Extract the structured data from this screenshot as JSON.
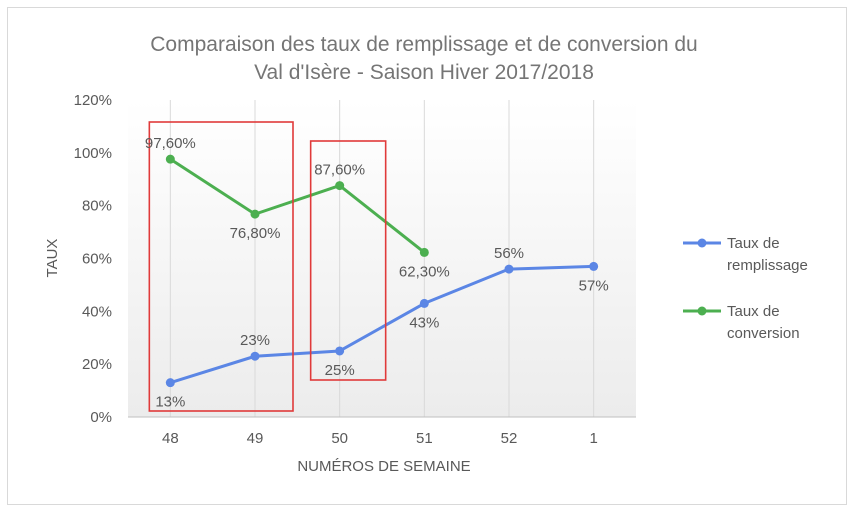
{
  "chart_data": {
    "type": "line",
    "title_lines": [
      "Comparaison des taux de remplissage et de conversion du",
      "Val d'Isère - Saison Hiver 2017/2018"
    ],
    "xlabel": "NUMÉROS DE SEMAINE",
    "ylabel": "TAUX",
    "categories": [
      "48",
      "49",
      "50",
      "51",
      "52",
      "1"
    ],
    "y_ticks": [
      "0%",
      "20%",
      "40%",
      "60%",
      "80%",
      "100%",
      "120%"
    ],
    "ylim": [
      0,
      120
    ],
    "grid": "vertical",
    "legend_position": "right",
    "series": [
      {
        "name": "Taux de remplissage",
        "legend_lines": [
          "Taux de",
          "remplissage"
        ],
        "color": "#5b86e5",
        "values": [
          13,
          23,
          25,
          43,
          56,
          57
        ],
        "labels": [
          "13%",
          "23%",
          "25%",
          "43%",
          "56%",
          "57%"
        ],
        "label_positions": [
          "below",
          "above",
          "below",
          "below",
          "above",
          "below"
        ]
      },
      {
        "name": "Taux de conversion",
        "legend_lines": [
          "Taux de",
          "conversion"
        ],
        "color": "#4caf50",
        "values": [
          97.6,
          76.8,
          87.6,
          62.3,
          null,
          null
        ],
        "labels": [
          "97,60%",
          "76,80%",
          "87,60%",
          "62,30%",
          "",
          ""
        ],
        "label_positions": [
          "above",
          "below",
          "above",
          "below",
          "",
          ""
        ]
      }
    ],
    "annotations": [
      {
        "type": "highlight-box",
        "color": "#e03a3a",
        "from_category": "48",
        "to_category": "49"
      },
      {
        "type": "highlight-box",
        "color": "#e03a3a",
        "from_category": "50",
        "to_category": "50"
      }
    ],
    "colors": {
      "text": "#595959",
      "title": "#757575",
      "grid": "#d9d9d9",
      "plot_gradient_top": "#ffffff",
      "plot_gradient_bottom": "#ececec"
    }
  }
}
